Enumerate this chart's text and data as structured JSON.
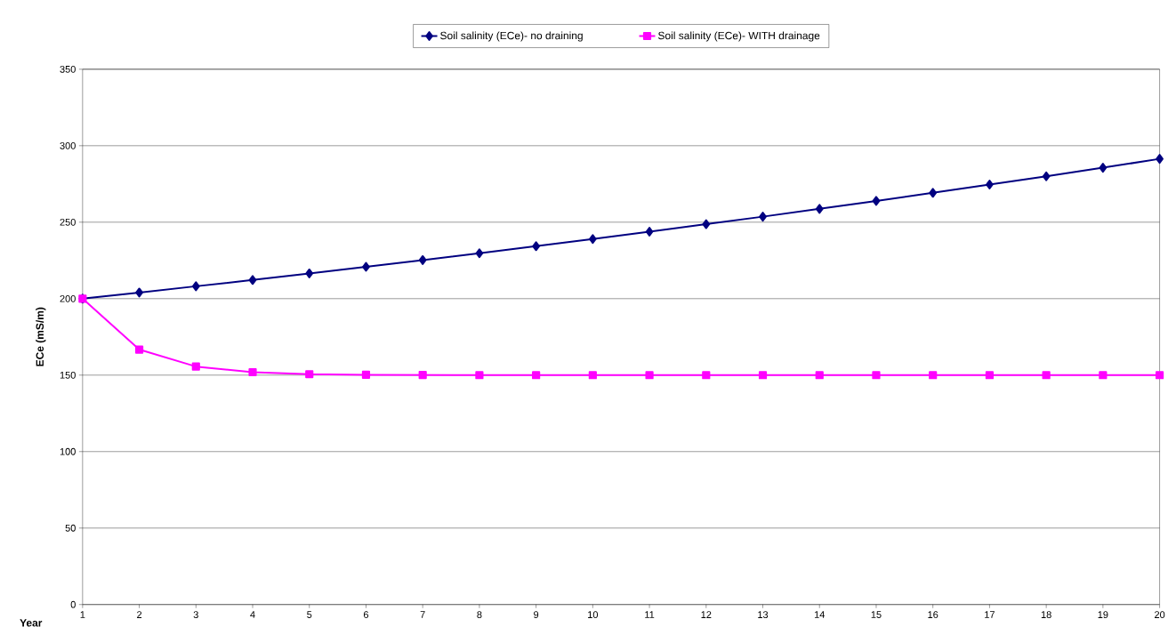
{
  "chart_data": {
    "type": "line",
    "xlabel": "Year",
    "ylabel": "ECe (mS/m)",
    "x": [
      1,
      2,
      3,
      4,
      5,
      6,
      7,
      8,
      9,
      10,
      11,
      12,
      13,
      14,
      15,
      16,
      17,
      18,
      19,
      20
    ],
    "series": [
      {
        "name": "Soil salinity (ECe)- no draining",
        "color": "#000080",
        "marker": "diamond",
        "values": [
          200,
          204,
          208.1,
          212.2,
          216.5,
          220.8,
          225.2,
          229.7,
          234.3,
          239,
          243.8,
          248.7,
          253.6,
          258.7,
          263.9,
          269.2,
          274.6,
          280,
          285.6,
          291.4
        ]
      },
      {
        "name": "Soil salinity (ECe)- WITH drainage",
        "color": "#ff00ff",
        "marker": "square",
        "values": [
          200,
          166.7,
          155.6,
          151.9,
          150.6,
          150.2,
          150.1,
          150,
          150,
          150,
          150,
          150,
          150,
          150,
          150,
          150,
          150,
          150,
          150,
          150
        ]
      }
    ],
    "xlim": [
      1,
      20
    ],
    "xticks": [
      1,
      2,
      3,
      4,
      5,
      6,
      7,
      8,
      9,
      10,
      11,
      12,
      13,
      14,
      15,
      16,
      17,
      18,
      19,
      20
    ],
    "ylim": [
      0,
      350
    ],
    "yticks": [
      0,
      50,
      100,
      150,
      200,
      250,
      300,
      350
    ],
    "grid": "y",
    "legend": "top",
    "line_style": "solid"
  }
}
